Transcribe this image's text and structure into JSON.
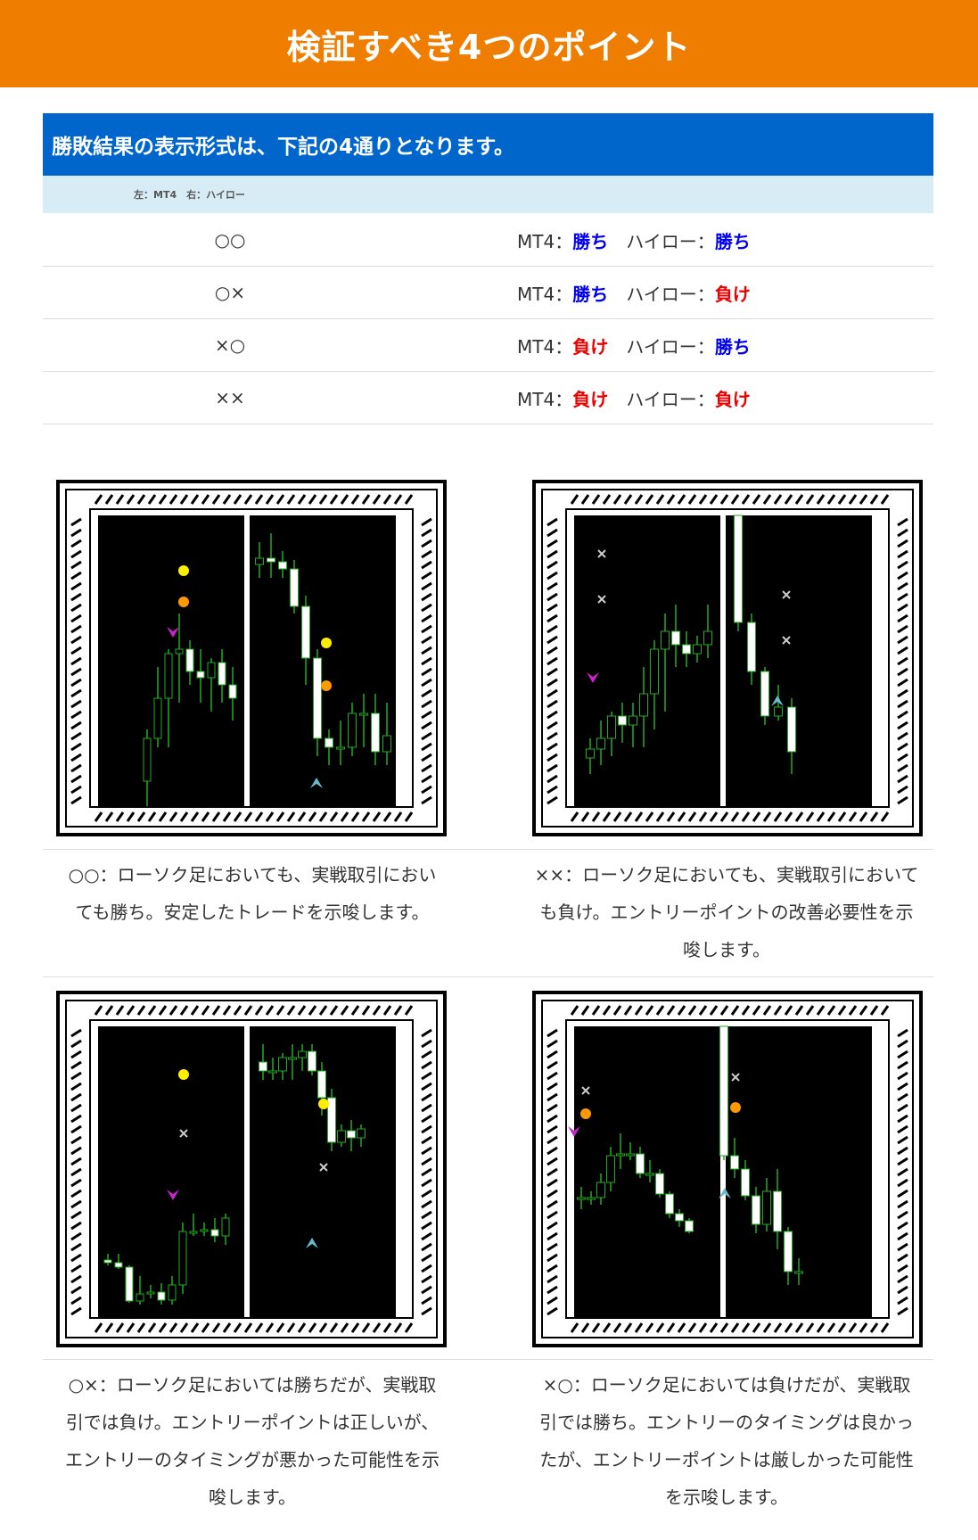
{
  "banner": {
    "title": "検証すべき4つのポイント"
  },
  "table": {
    "header": "勝敗結果の表示形式は、下記の4通りとなります。",
    "subheader": "左：MT4　右：ハイロー",
    "rows": [
      {
        "symbol": "○○",
        "mt4_label": "MT4：",
        "mt4_result": "勝ち",
        "mt4_status": "win",
        "sep": "　",
        "highlow_label": "ハイロー：",
        "highlow_result": "勝ち",
        "highlow_status": "win"
      },
      {
        "symbol": "○×",
        "mt4_label": "MT4：",
        "mt4_result": "勝ち",
        "mt4_status": "win",
        "sep": "　",
        "highlow_label": "ハイロー：",
        "highlow_result": "負け",
        "highlow_status": "lose"
      },
      {
        "symbol": "×○",
        "mt4_label": "MT4：",
        "mt4_result": "負け",
        "mt4_status": "lose",
        "sep": "　",
        "highlow_label": "ハイロー：",
        "highlow_result": "勝ち",
        "highlow_status": "win"
      },
      {
        "symbol": "××",
        "mt4_label": "MT4：",
        "mt4_result": "負け",
        "mt4_status": "lose",
        "sep": "　",
        "highlow_label": "ハイロー：",
        "highlow_result": "負け",
        "highlow_status": "lose"
      }
    ]
  },
  "colors": {
    "banner": "#ee7d00",
    "table_header": "#0066cc",
    "table_subheader": "#d8ecf6",
    "win": "#0000ee",
    "lose": "#ee0000",
    "candle_up": "#ffffff",
    "wick": "#22aa22",
    "marker_yellow": "#ffee00",
    "marker_orange": "#ff9900",
    "arrow_down": "#cc22cc",
    "arrow_up": "#66bbcc"
  },
  "panels": [
    {
      "id": "oo",
      "caption": [
        "○○：ローソク足においても、実戦取引におい",
        "ても勝ち。安定したトレードを示唆します。"
      ]
    },
    {
      "id": "xx",
      "caption": [
        "××：ローソク足においても、実戦取引において",
        "も負け。エントリーポイントの改善必要性を示",
        "唆します。"
      ]
    },
    {
      "id": "ox",
      "caption": [
        "○×：ローソク足においては勝ちだが、実戦取",
        "引では負け。エントリーポイントは正しいが、",
        "エントリーのタイミングが悪かった可能性を示",
        "唆します。"
      ]
    },
    {
      "id": "xo",
      "caption": [
        "×○：ローソク足においては負けだが、実戦取",
        "引では勝ち。エントリーのタイミングは良かっ",
        "たが、エントリーポイントは厳しかった可能性",
        "を示唆します。"
      ]
    }
  ]
}
